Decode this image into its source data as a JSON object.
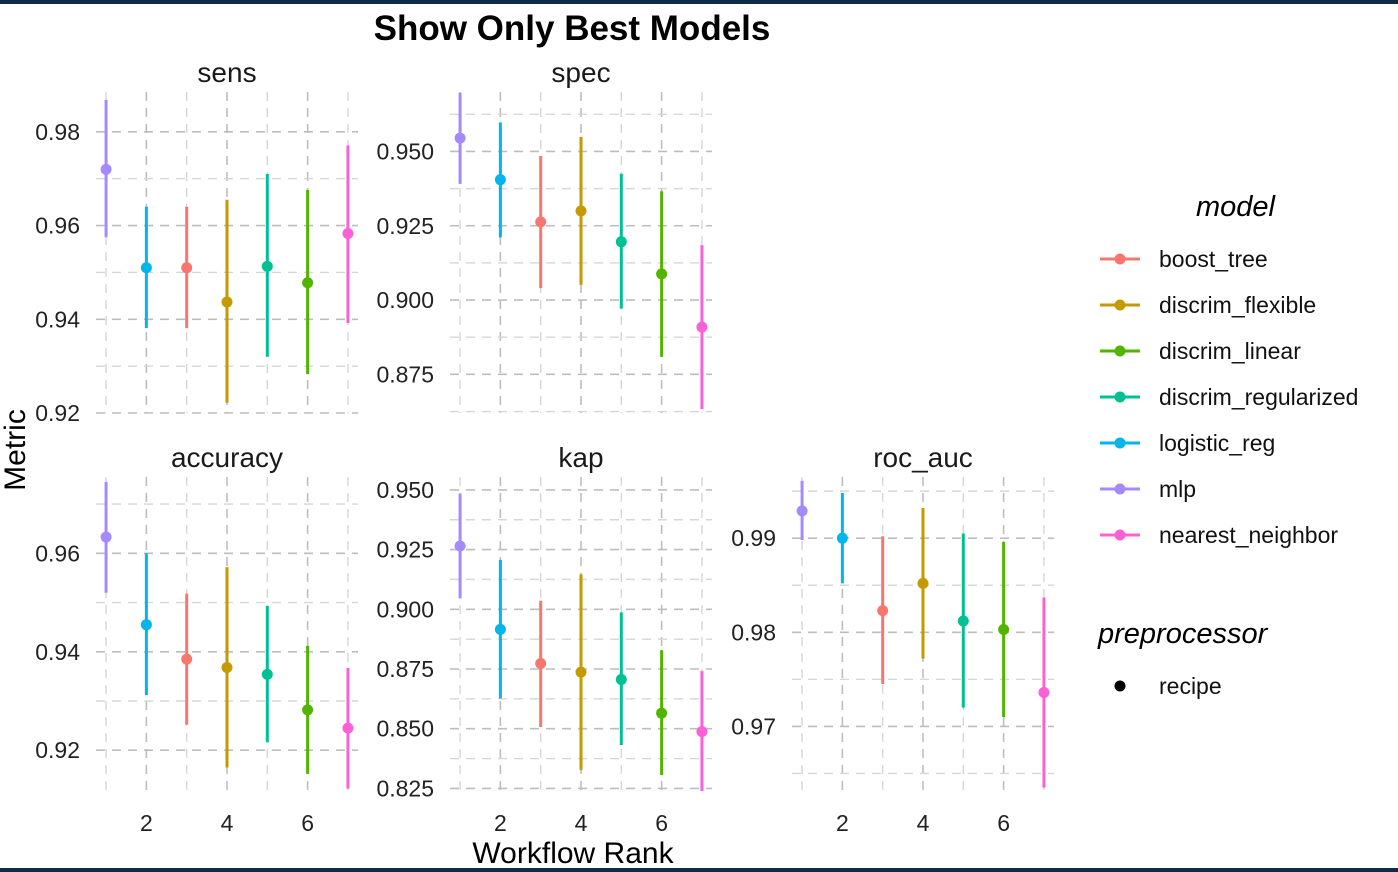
{
  "chart_data": {
    "type": "scatter",
    "title": "Show Only Best Models",
    "xlabel": "Workflow Rank",
    "ylabel": "Metric",
    "x_ticks": [
      2,
      4,
      6
    ],
    "legend": {
      "model_title": "model",
      "models": [
        {
          "name": "boost_tree",
          "color": "#F8766D"
        },
        {
          "name": "discrim_flexible",
          "color": "#C49A00"
        },
        {
          "name": "discrim_linear",
          "color": "#53B400"
        },
        {
          "name": "discrim_regularized",
          "color": "#00C094"
        },
        {
          "name": "logistic_reg",
          "color": "#00B6EB"
        },
        {
          "name": "mlp",
          "color": "#A58AFF"
        },
        {
          "name": "nearest_neighbor",
          "color": "#FB61D7"
        }
      ],
      "preprocessor_title": "preprocessor",
      "preprocessors": [
        "recipe"
      ]
    },
    "panels": [
      {
        "name": "sens",
        "ylim": [
          0.92,
          0.9885
        ],
        "yticks": [
          0.92,
          0.94,
          0.96,
          0.98
        ],
        "ytick_labels": [
          "0.92",
          "0.94",
          "0.96",
          "0.98"
        ],
        "points": [
          {
            "rank": 1,
            "model": "mlp",
            "mean": 0.972,
            "lo": 0.9575,
            "hi": 0.9868
          },
          {
            "rank": 2,
            "model": "logistic_reg",
            "mean": 0.951,
            "lo": 0.9381,
            "hi": 0.964
          },
          {
            "rank": 3,
            "model": "boost_tree",
            "mean": 0.951,
            "lo": 0.9381,
            "hi": 0.964
          },
          {
            "rank": 4,
            "model": "discrim_flexible",
            "mean": 0.9437,
            "lo": 0.9222,
            "hi": 0.9655
          },
          {
            "rank": 5,
            "model": "discrim_regularized",
            "mean": 0.9513,
            "lo": 0.932,
            "hi": 0.971
          },
          {
            "rank": 6,
            "model": "discrim_linear",
            "mean": 0.9478,
            "lo": 0.9283,
            "hi": 0.9676
          },
          {
            "rank": 7,
            "model": "nearest_neighbor",
            "mean": 0.9583,
            "lo": 0.9392,
            "hi": 0.9771
          }
        ]
      },
      {
        "name": "spec",
        "ylim": [
          0.862,
          0.97
        ],
        "yticks": [
          0.875,
          0.9,
          0.925,
          0.95
        ],
        "ytick_labels": [
          "0.875",
          "0.900",
          "0.925",
          "0.950"
        ],
        "points": [
          {
            "rank": 1,
            "model": "mlp",
            "mean": 0.9545,
            "lo": 0.9391,
            "hi": 0.9698
          },
          {
            "rank": 2,
            "model": "logistic_reg",
            "mean": 0.9405,
            "lo": 0.9211,
            "hi": 0.9598
          },
          {
            "rank": 3,
            "model": "boost_tree",
            "mean": 0.9263,
            "lo": 0.904,
            "hi": 0.9485
          },
          {
            "rank": 4,
            "model": "discrim_flexible",
            "mean": 0.93,
            "lo": 0.9051,
            "hi": 0.9549
          },
          {
            "rank": 5,
            "model": "discrim_regularized",
            "mean": 0.9196,
            "lo": 0.8971,
            "hi": 0.9425
          },
          {
            "rank": 6,
            "model": "discrim_linear",
            "mean": 0.9088,
            "lo": 0.8809,
            "hi": 0.9366
          },
          {
            "rank": 7,
            "model": "nearest_neighbor",
            "mean": 0.8909,
            "lo": 0.8633,
            "hi": 0.9185
          }
        ]
      },
      {
        "name": "accuracy",
        "ylim": [
          0.9105,
          0.9755
        ],
        "yticks": [
          0.92,
          0.94,
          0.96
        ],
        "ytick_labels": [
          "0.92",
          "0.94",
          "0.96"
        ],
        "points": [
          {
            "rank": 1,
            "model": "mlp",
            "mean": 0.9633,
            "lo": 0.952,
            "hi": 0.9745
          },
          {
            "rank": 2,
            "model": "logistic_reg",
            "mean": 0.9455,
            "lo": 0.9312,
            "hi": 0.96
          },
          {
            "rank": 3,
            "model": "boost_tree",
            "mean": 0.9385,
            "lo": 0.9252,
            "hi": 0.9518
          },
          {
            "rank": 4,
            "model": "discrim_flexible",
            "mean": 0.9368,
            "lo": 0.9165,
            "hi": 0.9572
          },
          {
            "rank": 5,
            "model": "discrim_regularized",
            "mean": 0.9354,
            "lo": 0.9216,
            "hi": 0.9493
          },
          {
            "rank": 6,
            "model": "discrim_linear",
            "mean": 0.9282,
            "lo": 0.9152,
            "hi": 0.9412
          },
          {
            "rank": 7,
            "model": "nearest_neighbor",
            "mean": 0.9245,
            "lo": 0.9122,
            "hi": 0.9367
          }
        ]
      },
      {
        "name": "kap",
        "ylim": [
          0.8214,
          0.9554
        ],
        "yticks": [
          0.825,
          0.85,
          0.875,
          0.9,
          0.925,
          0.95
        ],
        "ytick_labels": [
          "0.825",
          "0.850",
          "0.875",
          "0.900",
          "0.925",
          "0.950"
        ],
        "points": [
          {
            "rank": 1,
            "model": "mlp",
            "mean": 0.9265,
            "lo": 0.9046,
            "hi": 0.9485
          },
          {
            "rank": 2,
            "model": "logistic_reg",
            "mean": 0.8916,
            "lo": 0.8627,
            "hi": 0.9207
          },
          {
            "rank": 3,
            "model": "boost_tree",
            "mean": 0.8773,
            "lo": 0.8507,
            "hi": 0.9036
          },
          {
            "rank": 4,
            "model": "discrim_flexible",
            "mean": 0.8737,
            "lo": 0.8328,
            "hi": 0.9146
          },
          {
            "rank": 5,
            "model": "discrim_regularized",
            "mean": 0.8706,
            "lo": 0.8432,
            "hi": 0.8987
          },
          {
            "rank": 6,
            "model": "discrim_linear",
            "mean": 0.8565,
            "lo": 0.8306,
            "hi": 0.8829
          },
          {
            "rank": 7,
            "model": "nearest_neighbor",
            "mean": 0.8488,
            "lo": 0.8239,
            "hi": 0.8741
          }
        ]
      },
      {
        "name": "roc_auc",
        "ylim": [
          0.9625,
          0.9965
        ],
        "yticks": [
          0.97,
          0.98,
          0.99
        ],
        "ytick_labels": [
          "0.97",
          "0.98",
          "0.99"
        ],
        "points": [
          {
            "rank": 1,
            "model": "mlp",
            "mean": 0.9929,
            "lo": 0.9898,
            "hi": 0.9961
          },
          {
            "rank": 2,
            "model": "logistic_reg",
            "mean": 0.99,
            "lo": 0.9852,
            "hi": 0.9948
          },
          {
            "rank": 3,
            "model": "boost_tree",
            "mean": 0.9823,
            "lo": 0.9745,
            "hi": 0.9902
          },
          {
            "rank": 4,
            "model": "discrim_flexible",
            "mean": 0.9852,
            "lo": 0.9772,
            "hi": 0.9932
          },
          {
            "rank": 5,
            "model": "discrim_regularized",
            "mean": 0.9812,
            "lo": 0.972,
            "hi": 0.9905
          },
          {
            "rank": 6,
            "model": "discrim_linear",
            "mean": 0.9803,
            "lo": 0.971,
            "hi": 0.9896
          },
          {
            "rank": 7,
            "model": "nearest_neighbor",
            "mean": 0.9736,
            "lo": 0.9635,
            "hi": 0.9837
          }
        ]
      }
    ]
  }
}
